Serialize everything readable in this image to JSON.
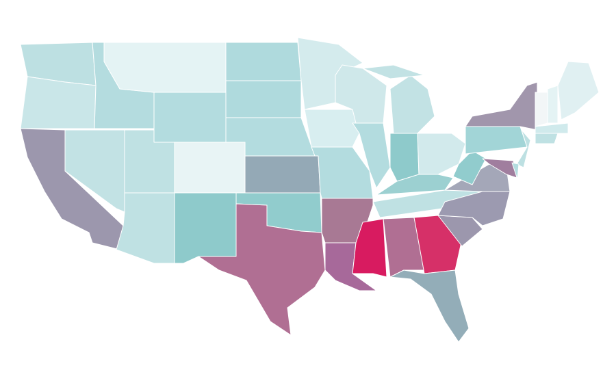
{
  "map": {
    "regions": [
      {
        "color": "#bde0e2"
      },
      {
        "color": "#c9e6e8"
      },
      {
        "color": "#9c97ad"
      },
      {
        "color": "#b4dcdf"
      },
      {
        "color": "#c2e2e4"
      },
      {
        "color": "#e4f3f4"
      },
      {
        "color": "#b3dcdf"
      },
      {
        "color": "#bfe1e3"
      },
      {
        "color": "#bfe1e3"
      },
      {
        "color": "#e8f4f5"
      },
      {
        "color": "#8ecacb"
      },
      {
        "color": "#afdadd"
      },
      {
        "color": "#afdadd"
      },
      {
        "color": "#b3dcdf"
      },
      {
        "color": "#94a9b6"
      },
      {
        "color": "#91cccd"
      },
      {
        "color": "#b06f93"
      },
      {
        "color": "#d4ebed"
      },
      {
        "color": "#d8eef0"
      },
      {
        "color": "#b3dcdf"
      },
      {
        "color": "#a87994"
      },
      {
        "color": "#a7699a"
      },
      {
        "color": "#cfe8ea"
      },
      {
        "color": "#b3dcdf"
      },
      {
        "color": "#8ecacb"
      },
      {
        "color": "#c2e2e4"
      },
      {
        "color": "#c2e2e4"
      },
      {
        "color": "#d2eaec"
      },
      {
        "color": "#9cd0d1"
      },
      {
        "color": "#bfe1e3"
      },
      {
        "color": "#d81b60"
      },
      {
        "color": "#b06f93"
      },
      {
        "color": "#d63068"
      },
      {
        "color": "#93adb8"
      },
      {
        "color": "#9c97ad"
      },
      {
        "color": "#9c9ab0"
      },
      {
        "color": "#a4a7b8"
      },
      {
        "color": "#91cccd"
      },
      {
        "color": "#a2d5d7"
      },
      {
        "color": "#a196ac"
      },
      {
        "color": "#a07e9e"
      },
      {
        "color": "#bde0e2"
      },
      {
        "color": "#b3dcdf"
      },
      {
        "color": "#f2f6f7"
      },
      {
        "color": "#e4f3f4"
      },
      {
        "color": "#e0f0f2"
      },
      {
        "color": "#d0eaec"
      },
      {
        "color": "#bfe1e3"
      }
    ]
  }
}
